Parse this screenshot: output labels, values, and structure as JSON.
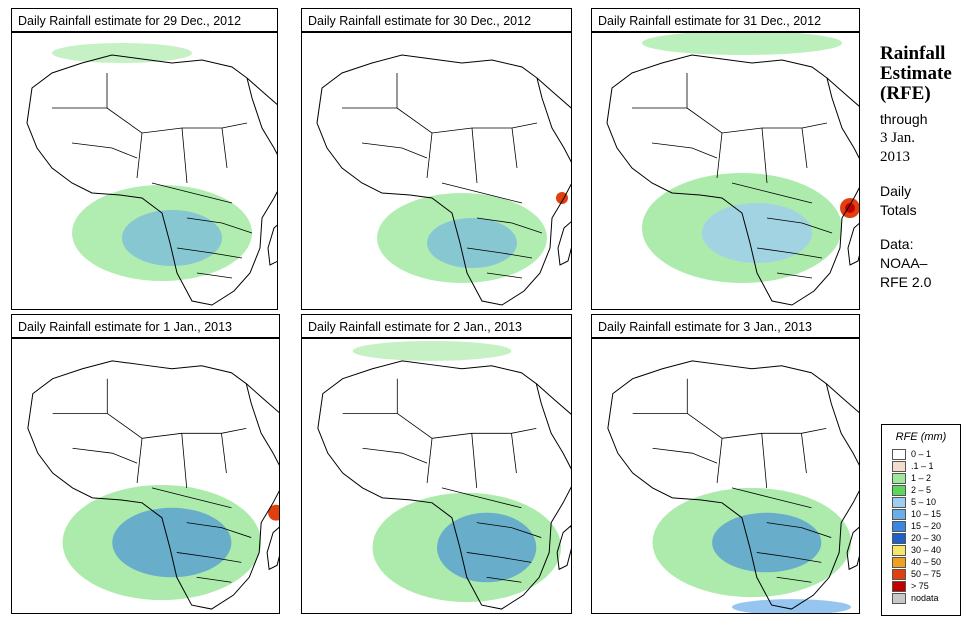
{
  "panels": [
    {
      "title": "Daily Rainfall estimate for  29 Dec., 2012"
    },
    {
      "title": "Daily Rainfall estimate for  30 Dec., 2012"
    },
    {
      "title": "Daily Rainfall estimate for  31 Dec., 2012"
    },
    {
      "title": "Daily Rainfall estimate for  1 Jan., 2013"
    },
    {
      "title": "Daily Rainfall estimate for  2 Jan., 2013"
    },
    {
      "title": "Daily Rainfall estimate for  3 Jan., 2013"
    }
  ],
  "sidebar": {
    "title_line1": "Rainfall",
    "title_line2": "Estimate",
    "title_line3": "(RFE)",
    "through": "through",
    "date_line1": "3 Jan.",
    "date_line2": "2013",
    "daily": "Daily",
    "totals": "Totals",
    "data_label": "Data:",
    "source_line1": "NOAA–",
    "source_line2": "RFE 2.0"
  },
  "legend": {
    "title": "RFE (mm)",
    "items": [
      {
        "label": "0 – 1",
        "color": "#ffffff"
      },
      {
        "label": ".1 – 1",
        "color": "#f2dccb"
      },
      {
        "label": "1 – 2",
        "color": "#9ee89e"
      },
      {
        "label": "2 – 5",
        "color": "#5cd65c"
      },
      {
        "label": "5 – 10",
        "color": "#9fcdf0"
      },
      {
        "label": "10 – 15",
        "color": "#6aaee8"
      },
      {
        "label": "15 – 20",
        "color": "#3a86e0"
      },
      {
        "label": "20 – 30",
        "color": "#1e5fc8"
      },
      {
        "label": "30 – 40",
        "color": "#f5e66a"
      },
      {
        "label": "40 – 50",
        "color": "#f0a020"
      },
      {
        "label": "50 – 75",
        "color": "#e04010"
      },
      {
        "label": "> 75",
        "color": "#c00000"
      },
      {
        "label": "nodata",
        "color": "#c8c8c8"
      }
    ]
  }
}
